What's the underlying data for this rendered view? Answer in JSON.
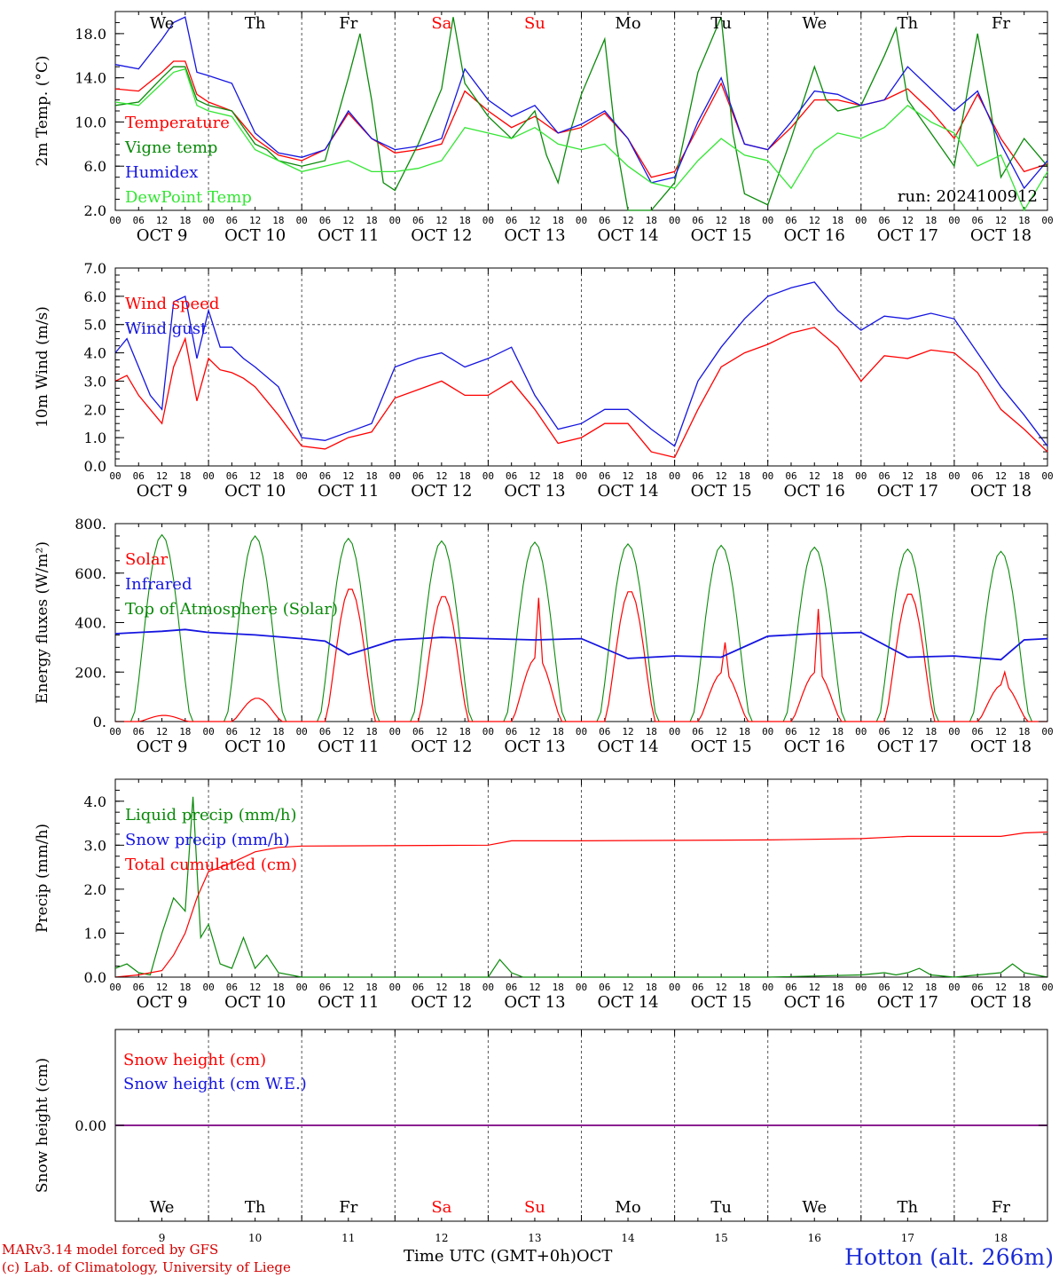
{
  "station": "Hotton (alt. 266m)",
  "credits": [
    "MARv3.14 model forced by GFS",
    "(c) Lab. of Climatology, University of Liege"
  ],
  "time_axis_title": "Time UTC (GMT+0h)",
  "month": "OCT",
  "run_label": "run: 2024100912",
  "days": [
    "We",
    "Th",
    "Fr",
    "Sa",
    "Su",
    "Mo",
    "Tu",
    "We",
    "Th",
    "Fr"
  ],
  "weekend_days": [
    "Sa",
    "Su"
  ],
  "date_labels": [
    "OCT  9",
    "OCT 10",
    "OCT 11",
    "OCT 12",
    "OCT 13",
    "OCT 14",
    "OCT 15",
    "OCT 16",
    "OCT 17",
    "OCT 18"
  ],
  "day_numbers": [
    "9",
    "10",
    "11",
    "12",
    "13",
    "14",
    "15",
    "16",
    "17",
    "18"
  ],
  "hour_ticks": [
    "00",
    "06",
    "12",
    "18"
  ],
  "colors": {
    "red": "#ff0000",
    "green": "#0a8a0a",
    "blue": "#1515e0",
    "lightgreen": "#33e633",
    "purple": "#8a2090",
    "weekend": "#ff0000"
  },
  "chart_data": [
    {
      "type": "line",
      "ylabel": "2m Temp. (°C)",
      "ylim": [
        2,
        20
      ],
      "yticks": [
        "2.0",
        "6.0",
        "10.0",
        "14.0",
        "18.0"
      ],
      "grid": "dashed vertical day separators",
      "legend": [
        "Temperature",
        "Vigne temp",
        "Humidex",
        "DewPoint Temp"
      ],
      "x_unit": "hours since Oct 9 00 UTC",
      "series": [
        {
          "name": "Temperature",
          "color": "red",
          "x": [
            0,
            6,
            12,
            15,
            18,
            21,
            24,
            30,
            36,
            42,
            48,
            54,
            60,
            66,
            72,
            78,
            84,
            90,
            96,
            102,
            108,
            114,
            120,
            126,
            132,
            138,
            144,
            150,
            156,
            162,
            168,
            174,
            180,
            186,
            192,
            198,
            204,
            210,
            216,
            222,
            228,
            234,
            240
          ],
          "y": [
            13.0,
            12.8,
            14.5,
            15.5,
            15.5,
            12.5,
            11.8,
            11.0,
            8.5,
            7.0,
            6.5,
            7.5,
            10.8,
            8.5,
            7.2,
            7.5,
            8.0,
            12.8,
            11.0,
            9.5,
            10.5,
            9.0,
            9.5,
            10.8,
            8.5,
            5.0,
            5.5,
            9.5,
            13.5,
            8.0,
            7.5,
            9.5,
            12.0,
            12.0,
            11.5,
            12.0,
            13.0,
            11.0,
            8.5,
            12.5,
            8.5,
            5.5,
            6.2
          ]
        },
        {
          "name": "Vigne temp",
          "color": "green",
          "x": [
            0,
            6,
            12,
            15,
            18,
            21,
            24,
            30,
            36,
            39,
            42,
            48,
            54,
            60,
            63,
            66,
            69,
            72,
            78,
            84,
            87,
            90,
            96,
            102,
            108,
            111,
            114,
            117,
            120,
            126,
            129,
            132,
            135,
            138,
            144,
            150,
            156,
            159,
            162,
            168,
            174,
            180,
            183,
            186,
            192,
            198,
            201,
            204,
            207,
            210,
            216,
            222,
            225,
            228,
            234,
            240
          ],
          "y": [
            11.5,
            11.8,
            14.0,
            15.0,
            15.0,
            12.0,
            11.5,
            11.0,
            8.0,
            7.5,
            6.5,
            6.0,
            6.5,
            14.0,
            18.0,
            12.0,
            4.5,
            3.8,
            8.0,
            13.0,
            19.5,
            13.5,
            10.5,
            8.5,
            11.0,
            7.0,
            4.5,
            9.0,
            12.5,
            17.5,
            8.0,
            2.0,
            2.0,
            1.5,
            4.5,
            14.5,
            19.5,
            9.0,
            3.5,
            2.5,
            8.5,
            15.0,
            12.0,
            11.0,
            11.5,
            16.0,
            18.5,
            12.0,
            10.5,
            9.0,
            6.0,
            18.0,
            12.0,
            5.0,
            8.5,
            6.0
          ]
        },
        {
          "name": "Humidex",
          "color": "blue",
          "x": [
            0,
            6,
            12,
            15,
            18,
            21,
            24,
            30,
            36,
            42,
            48,
            54,
            60,
            66,
            72,
            78,
            84,
            90,
            96,
            102,
            108,
            114,
            120,
            126,
            132,
            138,
            144,
            150,
            156,
            162,
            168,
            174,
            180,
            186,
            192,
            198,
            204,
            210,
            216,
            222,
            228,
            234,
            240
          ],
          "y": [
            15.2,
            14.8,
            17.5,
            19.0,
            19.5,
            14.5,
            14.2,
            13.5,
            9.0,
            7.2,
            6.8,
            7.5,
            11.0,
            8.5,
            7.5,
            7.8,
            8.5,
            14.8,
            12.0,
            10.5,
            11.5,
            9.0,
            9.8,
            11.0,
            8.5,
            4.5,
            5.0,
            10.0,
            14.0,
            8.0,
            7.5,
            10.0,
            12.8,
            12.5,
            11.5,
            12.0,
            15.0,
            13.0,
            11.0,
            12.8,
            8.0,
            4.0,
            6.5
          ]
        },
        {
          "name": "DewPoint Temp",
          "color": "lightgreen",
          "x": [
            0,
            6,
            12,
            15,
            18,
            21,
            24,
            30,
            36,
            42,
            48,
            54,
            60,
            66,
            72,
            78,
            84,
            90,
            96,
            102,
            108,
            114,
            120,
            126,
            132,
            138,
            144,
            150,
            156,
            162,
            168,
            174,
            180,
            186,
            192,
            198,
            204,
            210,
            216,
            222,
            228,
            234,
            240
          ],
          "y": [
            11.8,
            11.5,
            13.5,
            14.5,
            14.8,
            11.5,
            11.0,
            10.5,
            7.5,
            6.5,
            5.5,
            6.0,
            6.5,
            5.5,
            5.5,
            5.8,
            6.5,
            9.5,
            9.0,
            8.5,
            9.5,
            8.0,
            7.5,
            8.0,
            6.0,
            4.5,
            4.0,
            6.5,
            8.5,
            7.0,
            6.5,
            4.0,
            7.5,
            9.0,
            8.5,
            9.5,
            11.5,
            10.0,
            9.0,
            6.0,
            7.0,
            2.0,
            5.5
          ]
        }
      ]
    },
    {
      "type": "line",
      "ylabel": "10m Wind (m/s)",
      "ylim": [
        0,
        7
      ],
      "yticks": [
        "0.0",
        "1.0",
        "2.0",
        "3.0",
        "4.0",
        "5.0",
        "6.0",
        "7.0"
      ],
      "reference_line": 5.0,
      "legend": [
        "Wind speed",
        "Wind gust"
      ],
      "series": [
        {
          "name": "Wind speed",
          "color": "red",
          "x": [
            0,
            3,
            6,
            9,
            12,
            15,
            18,
            21,
            24,
            27,
            30,
            33,
            36,
            42,
            48,
            54,
            60,
            66,
            72,
            78,
            84,
            90,
            96,
            102,
            108,
            114,
            120,
            126,
            132,
            138,
            144,
            150,
            156,
            162,
            168,
            174,
            180,
            186,
            192,
            198,
            204,
            210,
            216,
            222,
            228,
            234,
            240
          ],
          "y": [
            3.0,
            3.2,
            2.5,
            2.0,
            1.5,
            3.5,
            4.5,
            2.3,
            3.8,
            3.4,
            3.3,
            3.1,
            2.8,
            1.8,
            0.7,
            0.6,
            1.0,
            1.2,
            2.4,
            2.7,
            3.0,
            2.5,
            2.5,
            3.0,
            2.0,
            0.8,
            1.0,
            1.5,
            1.5,
            0.5,
            0.3,
            2.0,
            3.5,
            4.0,
            4.3,
            4.7,
            4.9,
            4.2,
            3.0,
            3.9,
            3.8,
            4.1,
            4.0,
            3.3,
            2.0,
            1.3,
            0.5
          ]
        },
        {
          "name": "Wind gust",
          "color": "blue",
          "x": [
            0,
            3,
            6,
            9,
            12,
            15,
            18,
            21,
            24,
            27,
            30,
            33,
            36,
            42,
            48,
            54,
            60,
            66,
            72,
            78,
            84,
            90,
            96,
            102,
            108,
            114,
            120,
            126,
            132,
            138,
            144,
            150,
            156,
            162,
            168,
            174,
            180,
            186,
            192,
            198,
            204,
            210,
            216,
            222,
            228,
            234,
            240
          ],
          "y": [
            4.0,
            4.5,
            3.5,
            2.5,
            2.0,
            5.8,
            6.0,
            3.8,
            5.5,
            4.2,
            4.2,
            3.8,
            3.5,
            2.8,
            1.0,
            0.9,
            1.2,
            1.5,
            3.5,
            3.8,
            4.0,
            3.5,
            3.8,
            4.2,
            2.5,
            1.3,
            1.5,
            2.0,
            2.0,
            1.3,
            0.7,
            3.0,
            4.2,
            5.2,
            6.0,
            6.3,
            6.5,
            5.5,
            4.8,
            5.3,
            5.2,
            5.4,
            5.2,
            4.0,
            2.8,
            1.8,
            0.7
          ]
        }
      ]
    },
    {
      "type": "line",
      "ylabel": "Energy fluxes (W/m²)",
      "ylim": [
        0,
        800
      ],
      "yticks": [
        "0.",
        "200.",
        "400.",
        "600.",
        "800."
      ],
      "legend": [
        "Solar",
        "Infrared",
        "Top of Atmosphere (Solar)"
      ],
      "toa_peaks": [
        755,
        750,
        740,
        730,
        725,
        718,
        712,
        705,
        697,
        688
      ],
      "solar_peaks": [
        25,
        95,
        540,
        510,
        260,
        530,
        200,
        200,
        520,
        150
      ],
      "solar_spikes": [
        null,
        null,
        null,
        null,
        500,
        null,
        320,
        455,
        null,
        200
      ],
      "series": [
        {
          "name": "Infrared",
          "color": "blue",
          "x": [
            0,
            6,
            12,
            18,
            24,
            36,
            48,
            54,
            60,
            66,
            72,
            84,
            96,
            108,
            120,
            132,
            144,
            156,
            168,
            180,
            192,
            204,
            216,
            228,
            234,
            240
          ],
          "y": [
            355,
            360,
            365,
            372,
            360,
            350,
            335,
            325,
            270,
            300,
            330,
            340,
            335,
            330,
            335,
            255,
            265,
            260,
            345,
            355,
            360,
            260,
            265,
            250,
            330,
            335
          ]
        }
      ]
    },
    {
      "type": "line",
      "ylabel": "Precip (mm/h)",
      "ylim": [
        0,
        4.5
      ],
      "yticks": [
        "0.0",
        "1.0",
        "2.0",
        "3.0",
        "4.0"
      ],
      "legend": [
        "Liquid precip (mm/h)",
        "Snow precip (mm/h)",
        "Total cumulated (cm)"
      ],
      "series": [
        {
          "name": "Liquid precip (mm/h)",
          "color": "green",
          "x": [
            0,
            3,
            6,
            9,
            12,
            15,
            18,
            20,
            22,
            24,
            27,
            30,
            33,
            36,
            39,
            42,
            48,
            96,
            99,
            102,
            105,
            108,
            168,
            192,
            198,
            201,
            204,
            207,
            210,
            216,
            228,
            231,
            234,
            240
          ],
          "y": [
            0.2,
            0.3,
            0.1,
            0.05,
            1.0,
            1.8,
            1.5,
            4.1,
            0.9,
            1.2,
            0.3,
            0.2,
            0.9,
            0.2,
            0.5,
            0.1,
            0,
            0,
            0.4,
            0.1,
            0,
            0,
            0,
            0.05,
            0.1,
            0.05,
            0.1,
            0.2,
            0.05,
            0,
            0.1,
            0.3,
            0.1,
            0
          ]
        },
        {
          "name": "Total cumulated (cm)",
          "color": "red",
          "x": [
            0,
            6,
            12,
            15,
            18,
            21,
            24,
            30,
            36,
            42,
            48,
            96,
            102,
            120,
            168,
            192,
            204,
            228,
            234,
            240
          ],
          "y": [
            0,
            0.05,
            0.15,
            0.5,
            1.0,
            1.8,
            2.4,
            2.6,
            2.85,
            2.95,
            2.98,
            3.0,
            3.1,
            3.1,
            3.12,
            3.15,
            3.2,
            3.2,
            3.28,
            3.3
          ]
        }
      ]
    },
    {
      "type": "line",
      "ylabel": "Snow height (cm)",
      "yticks": [
        "0.00"
      ],
      "legend": [
        "Snow height (cm)",
        "Snow height (cm W.E.)"
      ],
      "series": [
        {
          "name": "Snow height (cm)",
          "color": "red",
          "x": [
            0,
            240
          ],
          "y": [
            0.0,
            0.0
          ]
        },
        {
          "name": "Snow height (cm W.E.)",
          "color": "blue",
          "x": [
            0,
            240
          ],
          "y": [
            0.0,
            0.0
          ]
        }
      ]
    }
  ]
}
